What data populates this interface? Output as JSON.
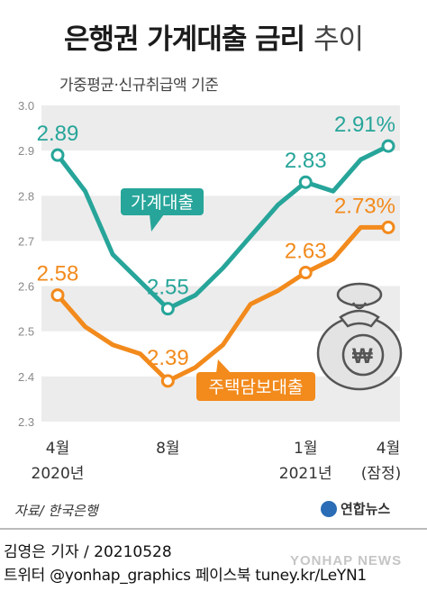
{
  "header": {
    "title_bold": "은행권 가계대출 금리",
    "title_light": "추이",
    "subtitle": "가중평균·신규취급액 기준"
  },
  "chart_data": {
    "type": "line",
    "ylim": [
      2.3,
      3.0
    ],
    "y_ticks": [
      "3.0",
      "2.9",
      "2.8",
      "2.7",
      "2.6",
      "2.5",
      "2.4",
      "2.3"
    ],
    "grid": "alternating horizontal bands",
    "x_tick_labels": [
      {
        "month": "4월",
        "year": "2020년"
      },
      {
        "month": "8월",
        "year": ""
      },
      {
        "month": "1월",
        "year": "2021년"
      },
      {
        "month": "4월",
        "year": "(잠정)"
      }
    ],
    "x": [
      "2020-04",
      "2020-05",
      "2020-06",
      "2020-07",
      "2020-08",
      "2020-09",
      "2020-10",
      "2020-11",
      "2020-12",
      "2021-01",
      "2021-02",
      "2021-03",
      "2021-04"
    ],
    "series": [
      {
        "name": "가계대출",
        "color": "#27a59a",
        "values": [
          2.89,
          2.81,
          2.67,
          2.61,
          2.55,
          2.58,
          2.64,
          2.71,
          2.78,
          2.83,
          2.81,
          2.88,
          2.91
        ],
        "labels": [
          {
            "index": 0,
            "text": "2.89"
          },
          {
            "index": 4,
            "text": "2.55"
          },
          {
            "index": 9,
            "text": "2.83"
          },
          {
            "index": 12,
            "text": "2.91%"
          }
        ]
      },
      {
        "name": "주택담보대출",
        "color": "#f28a1c",
        "values": [
          2.58,
          2.51,
          2.47,
          2.45,
          2.39,
          2.42,
          2.47,
          2.56,
          2.59,
          2.63,
          2.66,
          2.73,
          2.73
        ],
        "labels": [
          {
            "index": 0,
            "text": "2.58"
          },
          {
            "index": 4,
            "text": "2.39"
          },
          {
            "index": 9,
            "text": "2.63"
          },
          {
            "index": 12,
            "text": "2.73%"
          }
        ]
      }
    ]
  },
  "footer": {
    "source": "자료/ 한국은행",
    "logo_text": "연합뉴스",
    "byline": "김영은 기자 / 20210528",
    "social": "트위터 @yonhap_graphics 페이스북 tuney.kr/LeYN1",
    "watermark": "YONHAP NEWS"
  }
}
